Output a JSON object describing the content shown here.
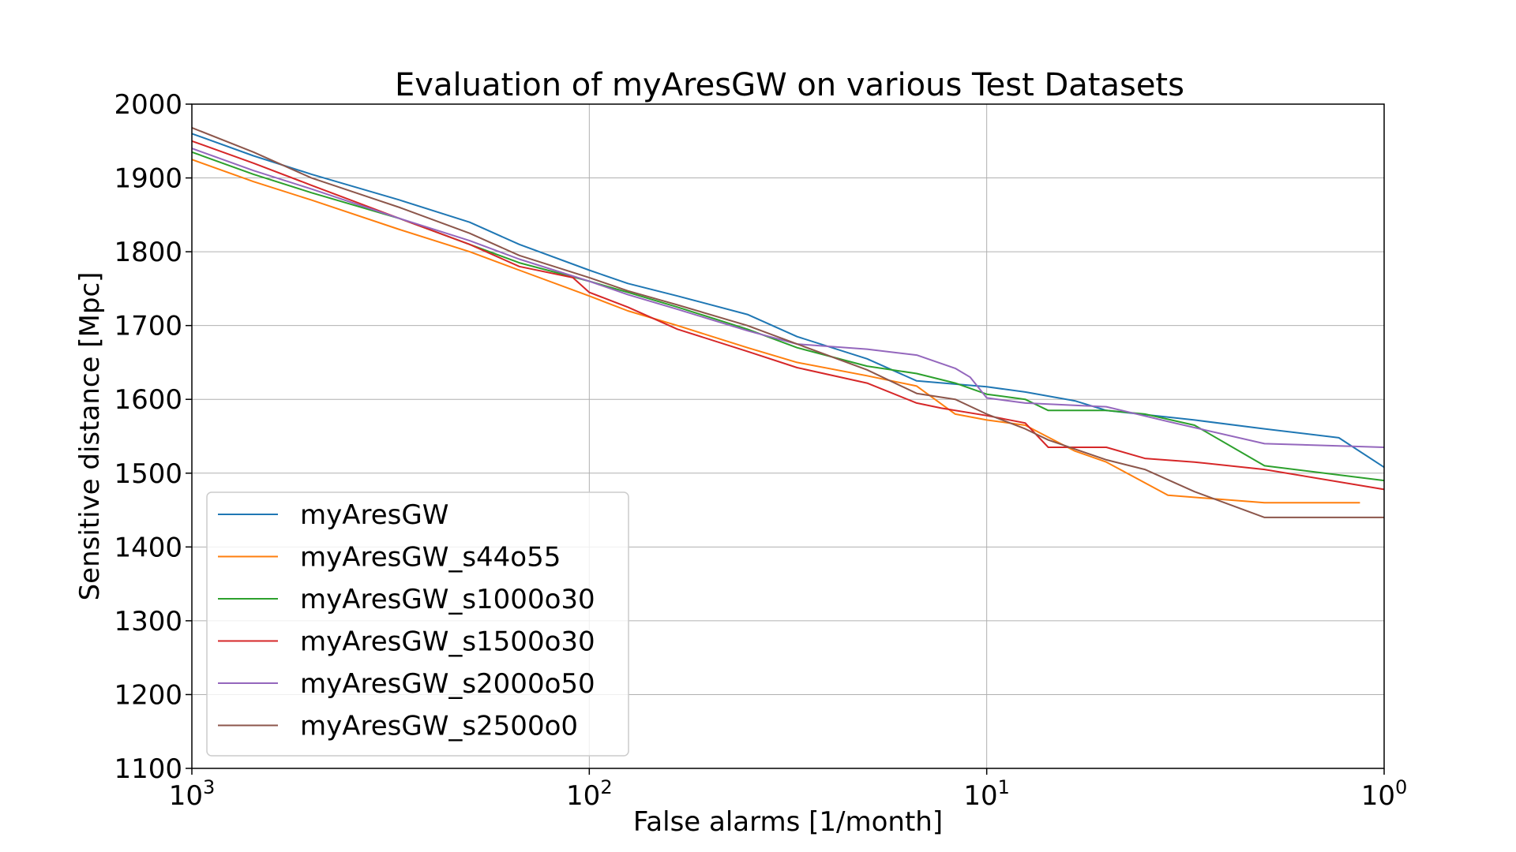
{
  "chart_data": {
    "type": "line",
    "title": "Evaluation of myAresGW on various Test Datasets",
    "xlabel": "False alarms [1/month]",
    "ylabel": "Sensitive distance [Mpc]",
    "xscale": "log",
    "x_reversed": true,
    "xlim": [
      1000,
      1
    ],
    "ylim": [
      1100,
      2000
    ],
    "x_ticks": [
      {
        "value": 1000,
        "base": "10",
        "exp": "3"
      },
      {
        "value": 100,
        "base": "10",
        "exp": "2"
      },
      {
        "value": 10,
        "base": "10",
        "exp": "1"
      },
      {
        "value": 1,
        "base": "10",
        "exp": "0"
      }
    ],
    "y_ticks": [
      1100,
      1200,
      1300,
      1400,
      1500,
      1600,
      1700,
      1800,
      1900,
      2000
    ],
    "grid": true,
    "legend_position": "lower-left",
    "series": [
      {
        "name": "myAresGW",
        "color": "#1f77b4",
        "x": [
          1000,
          700,
          500,
          300,
          200,
          150,
          100,
          80,
          60,
          40,
          30,
          20,
          15,
          10,
          8,
          6,
          5,
          3,
          2,
          1.3,
          1
        ],
        "y": [
          1960,
          1930,
          1905,
          1870,
          1840,
          1810,
          1775,
          1757,
          1740,
          1715,
          1685,
          1655,
          1625,
          1617,
          1610,
          1598,
          1585,
          1572,
          1560,
          1548,
          1508
        ]
      },
      {
        "name": "myAresGW_s44o55",
        "color": "#ff7f0e",
        "x": [
          1000,
          700,
          500,
          300,
          200,
          150,
          100,
          80,
          60,
          40,
          30,
          20,
          15,
          12,
          10,
          8,
          6,
          5,
          3.5,
          2,
          1.5,
          1.15
        ],
        "y": [
          1925,
          1895,
          1870,
          1830,
          1800,
          1775,
          1740,
          1720,
          1700,
          1670,
          1650,
          1632,
          1618,
          1580,
          1572,
          1565,
          1530,
          1515,
          1470,
          1460,
          1460,
          1460
        ]
      },
      {
        "name": "myAresGW_s1000o30",
        "color": "#2ca02c",
        "x": [
          1000,
          700,
          500,
          300,
          200,
          150,
          100,
          80,
          60,
          40,
          30,
          20,
          15,
          12,
          10,
          8,
          7,
          5,
          4,
          3,
          2,
          1
        ],
        "y": [
          1935,
          1905,
          1880,
          1845,
          1810,
          1785,
          1760,
          1745,
          1725,
          1695,
          1670,
          1645,
          1635,
          1622,
          1607,
          1600,
          1585,
          1585,
          1580,
          1565,
          1510,
          1490
        ]
      },
      {
        "name": "myAresGW_s1500o30",
        "color": "#d62728",
        "x": [
          1000,
          700,
          500,
          300,
          200,
          150,
          110,
          100,
          80,
          60,
          40,
          30,
          20,
          15,
          13,
          10,
          8,
          7,
          5,
          4,
          3,
          2,
          1
        ],
        "y": [
          1950,
          1920,
          1890,
          1845,
          1810,
          1780,
          1765,
          1745,
          1725,
          1695,
          1665,
          1643,
          1622,
          1595,
          1588,
          1578,
          1568,
          1535,
          1535,
          1520,
          1515,
          1505,
          1478
        ]
      },
      {
        "name": "myAresGW_s2000o50",
        "color": "#9467bd",
        "x": [
          1000,
          700,
          500,
          300,
          200,
          150,
          100,
          80,
          60,
          40,
          30,
          20,
          15,
          12,
          11,
          10,
          8,
          5,
          3.5,
          2,
          1
        ],
        "y": [
          1940,
          1910,
          1885,
          1845,
          1815,
          1790,
          1760,
          1742,
          1722,
          1693,
          1675,
          1668,
          1660,
          1642,
          1630,
          1602,
          1595,
          1590,
          1570,
          1540,
          1535
        ]
      },
      {
        "name": "myAresGW_s2500o0",
        "color": "#8c564b",
        "x": [
          1000,
          700,
          500,
          300,
          200,
          150,
          100,
          80,
          60,
          40,
          30,
          20,
          15,
          12,
          10,
          8,
          7,
          5,
          4,
          3,
          2,
          1
        ],
        "y": [
          1968,
          1935,
          1900,
          1860,
          1825,
          1795,
          1765,
          1747,
          1728,
          1700,
          1675,
          1640,
          1608,
          1600,
          1580,
          1560,
          1545,
          1518,
          1505,
          1475,
          1440,
          1440
        ]
      }
    ]
  }
}
